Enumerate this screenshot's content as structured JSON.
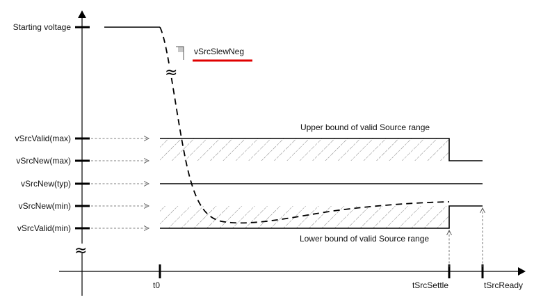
{
  "y_axis_labels": {
    "starting_voltage": "Starting voltage",
    "vsrcvalid_max": "vSrcValid(max)",
    "vsrcnew_max": "vSrcNew(max)",
    "vsrcnew_typ": "vSrcNew(typ)",
    "vsrcnew_min": "vSrcNew(min)",
    "vsrcvalid_min": "vSrcValid(min)"
  },
  "x_axis_labels": {
    "t0": "t0",
    "tsrcsettle": "tSrcSettle",
    "tsrcready": "tSrcReady"
  },
  "annotations": {
    "slew_label": "vSrcSlewNeg",
    "upper_bound": "Upper bound of valid Source range",
    "lower_bound": "Lower bound of valid Source range",
    "break_symbol": "≈"
  },
  "colors": {
    "highlight_underline": "#e00000",
    "hatch": "#666666"
  }
}
